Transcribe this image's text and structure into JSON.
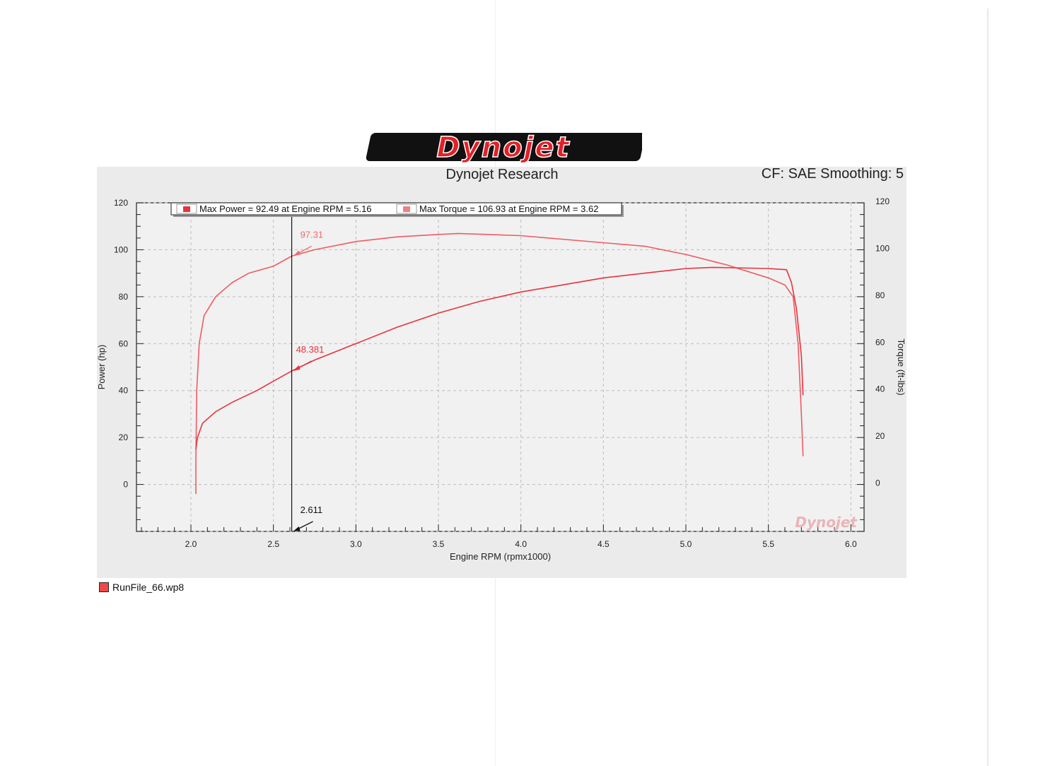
{
  "logo_text": "Dynojet",
  "report": {
    "title": "Dynojet Research",
    "cf_label": "CF: SAE Smoothing: 5"
  },
  "runfile": {
    "name": "RunFile_66.wp8",
    "color": "#f04848"
  },
  "chart_data": {
    "type": "line",
    "title": "",
    "xlabel": "Engine RPM (rpmx1000)",
    "ylabel_left": "Power (hp)",
    "ylabel_right": "Torque (ft-lbs)",
    "xlim": [
      1.67,
      6.08
    ],
    "ylim": [
      -20,
      120
    ],
    "x_ticks": [
      "2.0",
      "2.5",
      "3.0",
      "3.5",
      "4.0",
      "4.5",
      "5.0",
      "5.5",
      "6.0"
    ],
    "y_ticks_left": [
      "120",
      "100",
      "80",
      "60",
      "40",
      "20",
      "0"
    ],
    "y_ticks_right": [
      "120",
      "100",
      "80",
      "60",
      "40",
      "20",
      "0"
    ],
    "grid": true,
    "legend": [
      {
        "label": "Max Power = 92.49 at Engine RPM = 5.16",
        "color": "#e8323c"
      },
      {
        "label": "Max Torque = 106.93 at Engine RPM = 3.62",
        "color": "#ef7f86"
      }
    ],
    "cursor": {
      "x": 2.611,
      "x_label": "2.611",
      "power_label": "48.381",
      "torque_label": "97.31"
    },
    "watermark": "Dynojet",
    "series": [
      {
        "key": "torque",
        "color": "#f05a62",
        "points": [
          [
            2.03,
            -4
          ],
          [
            2.03,
            10
          ],
          [
            2.035,
            40
          ],
          [
            2.05,
            60
          ],
          [
            2.08,
            72
          ],
          [
            2.15,
            80
          ],
          [
            2.25,
            86
          ],
          [
            2.35,
            90
          ],
          [
            2.5,
            93
          ],
          [
            2.611,
            97.31
          ],
          [
            2.75,
            100
          ],
          [
            3.0,
            103.5
          ],
          [
            3.25,
            105.5
          ],
          [
            3.5,
            106.5
          ],
          [
            3.62,
            106.93
          ],
          [
            3.8,
            106.5
          ],
          [
            4.0,
            106
          ],
          [
            4.25,
            104.5
          ],
          [
            4.5,
            103
          ],
          [
            4.75,
            101.5
          ],
          [
            5.0,
            98
          ],
          [
            5.25,
            93.5
          ],
          [
            5.5,
            88
          ],
          [
            5.6,
            85
          ],
          [
            5.65,
            80
          ],
          [
            5.68,
            60
          ],
          [
            5.7,
            30
          ],
          [
            5.71,
            12
          ]
        ]
      },
      {
        "key": "power",
        "color": "#e8323c",
        "points": [
          [
            2.03,
            15
          ],
          [
            2.04,
            20
          ],
          [
            2.07,
            26
          ],
          [
            2.15,
            31
          ],
          [
            2.25,
            35
          ],
          [
            2.4,
            40
          ],
          [
            2.5,
            44
          ],
          [
            2.611,
            48.381
          ],
          [
            2.75,
            53
          ],
          [
            3.0,
            60
          ],
          [
            3.25,
            67
          ],
          [
            3.5,
            73
          ],
          [
            3.75,
            78
          ],
          [
            4.0,
            82
          ],
          [
            4.25,
            85
          ],
          [
            4.5,
            88
          ],
          [
            4.75,
            90
          ],
          [
            5.0,
            92
          ],
          [
            5.16,
            92.49
          ],
          [
            5.3,
            92.3
          ],
          [
            5.5,
            92
          ],
          [
            5.61,
            91.5
          ],
          [
            5.64,
            86
          ],
          [
            5.67,
            75
          ],
          [
            5.7,
            55
          ],
          [
            5.71,
            38
          ]
        ]
      }
    ]
  }
}
